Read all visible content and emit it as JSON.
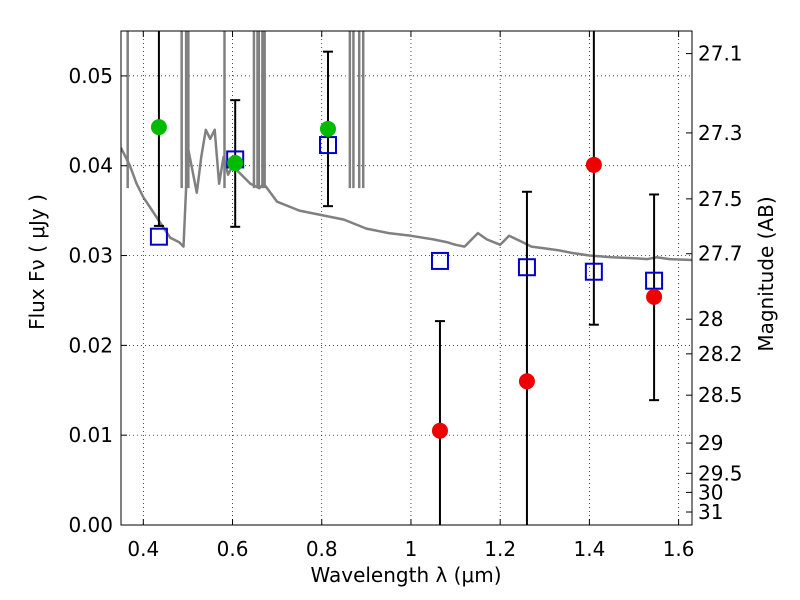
{
  "chart_data": {
    "type": "scatter",
    "xlabel": "Wavelength  λ (μm)",
    "ylabel": "Flux  Fν ( μJy )",
    "y2label": "Magnitude (AB)",
    "xlim": [
      0.35,
      1.63
    ],
    "ylim": [
      0.0,
      0.055
    ],
    "grid": true,
    "x_ticks": [
      0.4,
      0.6,
      0.8,
      1.0,
      1.2,
      1.4,
      1.6
    ],
    "x_tick_labels": [
      "0.4",
      "0.6",
      "0.8",
      "1",
      "1.2",
      "1.4",
      "1.6"
    ],
    "y_ticks": [
      0.0,
      0.01,
      0.02,
      0.03,
      0.04,
      0.05
    ],
    "y_tick_labels": [
      "0.00",
      "0.01",
      "0.02",
      "0.03",
      "0.04",
      "0.05"
    ],
    "magnitude_ticks": [
      "27.1",
      "27.3",
      "27.5",
      "27.7",
      "28",
      "28.2",
      "28.5",
      "29",
      "29.5",
      "30",
      "31"
    ],
    "colors": {
      "detection": "#00bb00",
      "upper_limit": "#ee0000",
      "model_photometry": "#0000cc",
      "sed_model": "#808080",
      "error_bar": "#000000"
    },
    "series": [
      {
        "marker": "circle",
        "color": "#00bb00",
        "points": [
          {
            "x": 0.435,
            "y": 0.0443,
            "yerr_low": 0.0333,
            "yerr_high": 0.0553
          },
          {
            "x": 0.606,
            "y": 0.0403,
            "yerr_low": 0.0332,
            "yerr_high": 0.0473
          },
          {
            "x": 0.814,
            "y": 0.0441,
            "yerr_low": 0.0355,
            "yerr_high": 0.0527
          }
        ]
      },
      {
        "marker": "circle",
        "color": "#ee0000",
        "points": [
          {
            "x": 1.065,
            "y": 0.0105,
            "yerr_low": 0.0,
            "yerr_high": 0.0227
          },
          {
            "x": 1.26,
            "y": 0.016,
            "yerr_low": 0.0,
            "yerr_high": 0.0371
          },
          {
            "x": 1.41,
            "y": 0.0401,
            "yerr_low": 0.0223,
            "yerr_high": 0.0553
          },
          {
            "x": 1.545,
            "y": 0.0254,
            "yerr_low": 0.0139,
            "yerr_high": 0.0368
          }
        ]
      },
      {
        "marker": "open-square",
        "color": "#0000cc",
        "points": [
          {
            "x": 0.435,
            "y": 0.0321
          },
          {
            "x": 0.606,
            "y": 0.0407
          },
          {
            "x": 0.814,
            "y": 0.0423
          },
          {
            "x": 1.065,
            "y": 0.0294
          },
          {
            "x": 1.26,
            "y": 0.0287
          },
          {
            "x": 1.41,
            "y": 0.0282
          },
          {
            "x": 1.545,
            "y": 0.0272
          }
        ]
      },
      {
        "type": "line",
        "color": "#808080",
        "x": [
          0.35,
          0.37,
          0.385,
          0.4,
          0.42,
          0.44,
          0.46,
          0.48,
          0.49,
          0.5,
          0.51,
          0.52,
          0.53,
          0.54,
          0.55,
          0.56,
          0.57,
          0.58,
          0.59,
          0.6,
          0.62,
          0.64,
          0.66,
          0.67,
          0.7,
          0.75,
          0.8,
          0.85,
          0.9,
          0.95,
          1.0,
          1.05,
          1.08,
          1.1,
          1.12,
          1.15,
          1.17,
          1.2,
          1.22,
          1.25,
          1.27,
          1.3,
          1.33,
          1.36,
          1.4,
          1.45,
          1.5,
          1.53,
          1.55,
          1.58,
          1.63
        ],
        "y": [
          0.042,
          0.04,
          0.038,
          0.0365,
          0.035,
          0.0335,
          0.032,
          0.0315,
          0.031,
          0.042,
          0.0395,
          0.037,
          0.041,
          0.044,
          0.043,
          0.044,
          0.038,
          0.041,
          0.039,
          0.04,
          0.039,
          0.038,
          0.0375,
          0.038,
          0.036,
          0.035,
          0.0345,
          0.034,
          0.033,
          0.0325,
          0.0322,
          0.0318,
          0.0315,
          0.0312,
          0.031,
          0.0325,
          0.0318,
          0.0312,
          0.0322,
          0.0315,
          0.031,
          0.0308,
          0.0306,
          0.0303,
          0.03,
          0.0298,
          0.0297,
          0.0296,
          0.0298,
          0.0296,
          0.0295
        ]
      }
    ],
    "emission_spikes_x": [
      0.365,
      0.486,
      0.496,
      0.501,
      0.582,
      0.648,
      0.656,
      0.659,
      0.667,
      0.672,
      0.863,
      0.871,
      0.884,
      0.893
    ],
    "spike_base_y": 0.0375
  }
}
